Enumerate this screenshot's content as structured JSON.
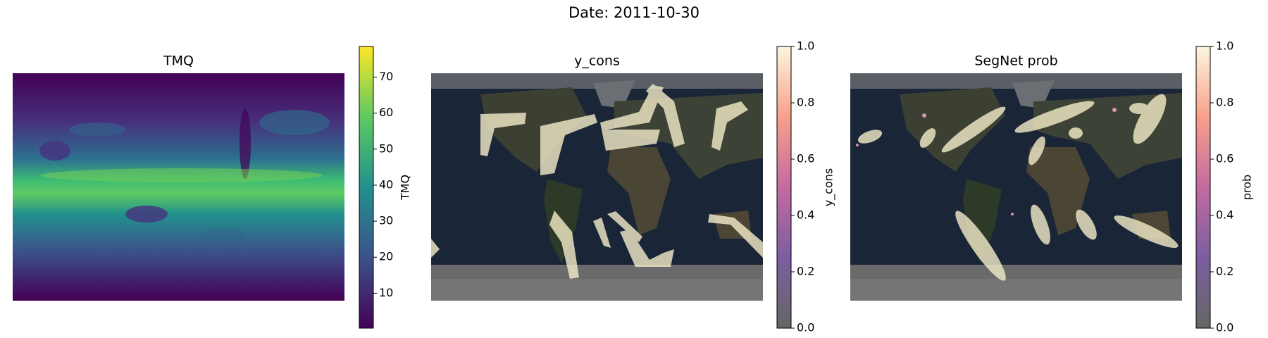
{
  "title": "Date: 2011-10-30",
  "chart_data": [
    {
      "type": "heatmap",
      "title": "TMQ",
      "colorbar_label": "TMQ",
      "colormap": "viridis",
      "clim": [
        0.3,
        78.5
      ],
      "cticks": [
        10,
        20,
        30,
        40,
        50,
        60,
        70
      ]
    },
    {
      "type": "heatmap",
      "title": "y_cons",
      "colorbar_label": "y_cons",
      "colormap": "gray-magma-cream",
      "clim": [
        0,
        1
      ],
      "cticks": [
        {
          "value": 0,
          "label": "0.0"
        },
        {
          "value": 0.2,
          "label": "0.2"
        },
        {
          "value": 0.4,
          "label": "0.4"
        },
        {
          "value": 0.6,
          "label": "0.6"
        },
        {
          "value": 0.8,
          "label": "0.8"
        },
        {
          "value": 1,
          "label": "1.0"
        }
      ]
    },
    {
      "type": "heatmap",
      "title": "SegNet prob",
      "colorbar_label": "prob",
      "colormap": "gray-magma-cream",
      "clim": [
        0,
        1
      ],
      "cticks": [
        {
          "value": 0,
          "label": "0.0"
        },
        {
          "value": 0.2,
          "label": "0.2"
        },
        {
          "value": 0.4,
          "label": "0.4"
        },
        {
          "value": 0.6,
          "label": "0.6"
        },
        {
          "value": 0.8,
          "label": "0.8"
        },
        {
          "value": 1,
          "label": "1.0"
        }
      ]
    }
  ]
}
